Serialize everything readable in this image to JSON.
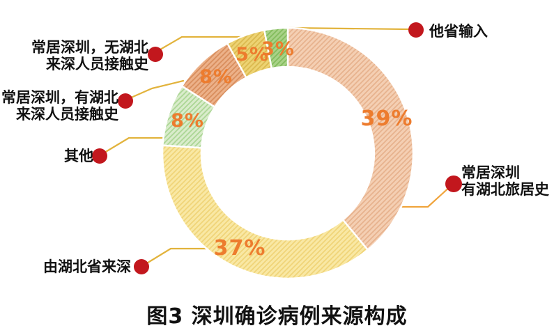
{
  "title": "图3 深圳确诊病例来源构成",
  "colors": {
    "dot_color": "#C2171D",
    "leader_gold": "#E2B33C",
    "leader_orange": "#F0A43C",
    "pct_color": "#ED7C2E",
    "label_color": "#111111",
    "title_color": "#111111"
  },
  "chart_data": {
    "type": "pie",
    "subtype": "donut",
    "title": "图3 深圳确诊病例来源构成",
    "start_angle_deg": 0,
    "direction": "clockwise",
    "unit": "%",
    "segments": [
      {
        "label": "常居深圳 有湖北旅居史",
        "value": 39,
        "pct_label": "39%",
        "base_color": "#F4CFB3",
        "hatch_color": "#E7B28D"
      },
      {
        "label": "由湖北省来深",
        "value": 37,
        "pct_label": "37%",
        "base_color": "#F9E8A4",
        "hatch_color": "#F0D478"
      },
      {
        "label": "其他",
        "value": 8,
        "pct_label": "8%",
        "base_color": "#D9ECCB",
        "hatch_color": "#ABD694"
      },
      {
        "label": "常居深圳，有湖北来深人员接触史",
        "value": 8,
        "pct_label": "8%",
        "base_color": "#ECB189",
        "hatch_color": "#D88D5C"
      },
      {
        "label": "常居深圳，无湖北来深人员接触史",
        "value": 5,
        "pct_label": "5%",
        "base_color": "#EDD373",
        "hatch_color": "#DBB94E"
      },
      {
        "label": "他省输入",
        "value": 3,
        "pct_label": "3%",
        "base_color": "#A8D287",
        "hatch_color": "#82BC5C"
      }
    ]
  },
  "annotations": {
    "other_province": {
      "text_lines": [
        "他省输入"
      ]
    },
    "resident_no_hubei_contact": {
      "text_lines": [
        "常居深圳，无湖北",
        "来深人员接触史"
      ]
    },
    "resident_hubei_contact": {
      "text_lines": [
        "常居深圳，有湖北",
        "来深人员接触史"
      ]
    },
    "other": {
      "text_lines": [
        "其他"
      ]
    },
    "from_hubei": {
      "text_lines": [
        "由湖北省来深"
      ]
    },
    "resident_hubei_travel": {
      "text_lines": [
        "常居深圳",
        "有湖北旅居史"
      ]
    }
  }
}
